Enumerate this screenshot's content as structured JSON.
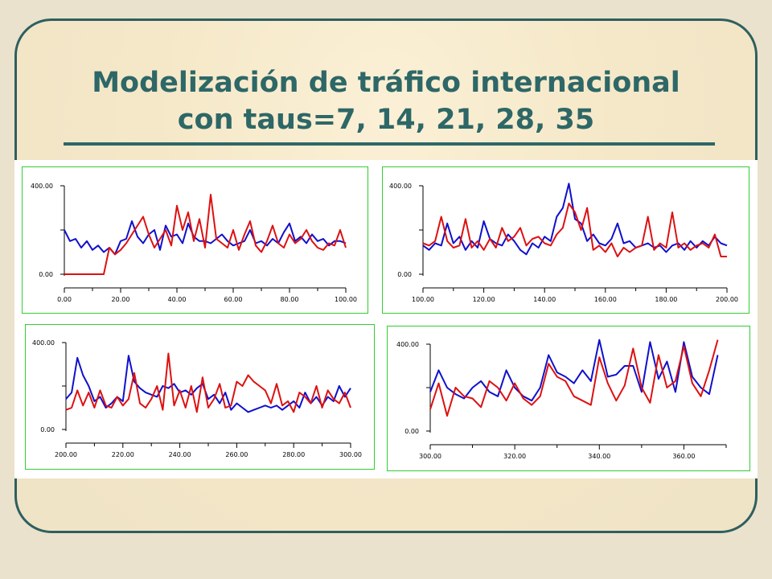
{
  "title": {
    "line1": "Modelización de tráfico internacional",
    "line2": "con taus=7, 14, 21, 28, 35"
  },
  "colors": {
    "background": "#eae2cc",
    "accent": "#2e6767",
    "series_blue": "#1010cc",
    "series_red": "#dd1111",
    "panel_border": "#33cc33"
  },
  "chart_data": [
    {
      "type": "line",
      "xlim": [
        0,
        100
      ],
      "ylim": [
        0,
        400
      ],
      "xtick_labels": [
        "0.00",
        "20.00",
        "40.00",
        "60.00",
        "80.00",
        "100.00"
      ],
      "ytick_labels": [
        "400.00",
        "0.00"
      ],
      "series": [
        {
          "color": "#1010cc",
          "x": [
            0,
            2,
            4,
            6,
            8,
            10,
            12,
            14,
            16,
            18,
            20,
            22,
            24,
            26,
            28,
            30,
            32,
            34,
            36,
            38,
            40,
            42,
            44,
            46,
            48,
            50,
            52,
            54,
            56,
            58,
            60,
            62,
            64,
            66,
            68,
            70,
            72,
            74,
            76,
            78,
            80,
            82,
            84,
            86,
            88,
            90,
            92,
            94,
            96,
            98,
            100
          ],
          "values": [
            200,
            150,
            160,
            120,
            150,
            110,
            130,
            100,
            120,
            90,
            150,
            160,
            240,
            170,
            140,
            180,
            200,
            110,
            220,
            170,
            180,
            140,
            230,
            170,
            150,
            150,
            140,
            160,
            180,
            150,
            130,
            140,
            150,
            200,
            140,
            150,
            130,
            160,
            140,
            190,
            230,
            150,
            170,
            140,
            180,
            150,
            160,
            130,
            150,
            150,
            140
          ]
        },
        {
          "color": "#dd1111",
          "x": [
            0,
            2,
            4,
            6,
            8,
            10,
            12,
            14,
            16,
            18,
            20,
            22,
            24,
            26,
            28,
            30,
            32,
            34,
            36,
            38,
            40,
            42,
            44,
            46,
            48,
            50,
            52,
            54,
            56,
            58,
            60,
            62,
            64,
            66,
            68,
            70,
            72,
            74,
            76,
            78,
            80,
            82,
            84,
            86,
            88,
            90,
            92,
            94,
            96,
            98,
            100
          ],
          "values": [
            0,
            0,
            0,
            0,
            0,
            0,
            0,
            0,
            120,
            90,
            110,
            140,
            180,
            220,
            260,
            180,
            120,
            160,
            200,
            130,
            310,
            200,
            280,
            150,
            250,
            120,
            360,
            160,
            140,
            120,
            200,
            110,
            180,
            240,
            130,
            100,
            150,
            220,
            140,
            120,
            180,
            140,
            160,
            200,
            150,
            120,
            110,
            140,
            130,
            200,
            120
          ]
        }
      ]
    },
    {
      "type": "line",
      "xlim": [
        100,
        200
      ],
      "ylim": [
        0,
        400
      ],
      "xtick_labels": [
        "100.00",
        "120.00",
        "140.00",
        "160.00",
        "180.00",
        "200.00"
      ],
      "ytick_labels": [
        "400.00",
        "0.00"
      ],
      "series": [
        {
          "color": "#1010cc",
          "x": [
            100,
            102,
            104,
            106,
            108,
            110,
            112,
            114,
            116,
            118,
            120,
            122,
            124,
            126,
            128,
            130,
            132,
            134,
            136,
            138,
            140,
            142,
            144,
            146,
            148,
            150,
            152,
            154,
            156,
            158,
            160,
            162,
            164,
            166,
            168,
            170,
            172,
            174,
            176,
            178,
            180,
            182,
            184,
            186,
            188,
            190,
            192,
            194,
            196,
            198,
            200
          ],
          "values": [
            130,
            110,
            140,
            130,
            230,
            140,
            170,
            110,
            150,
            120,
            240,
            160,
            140,
            130,
            180,
            150,
            110,
            90,
            140,
            120,
            170,
            150,
            260,
            300,
            410,
            250,
            230,
            150,
            180,
            140,
            130,
            160,
            230,
            140,
            150,
            120,
            130,
            140,
            120,
            130,
            100,
            130,
            140,
            110,
            150,
            120,
            150,
            130,
            170,
            140,
            130
          ]
        },
        {
          "color": "#dd1111",
          "x": [
            100,
            102,
            104,
            106,
            108,
            110,
            112,
            114,
            116,
            118,
            120,
            122,
            124,
            126,
            128,
            130,
            132,
            134,
            136,
            138,
            140,
            142,
            144,
            146,
            148,
            150,
            152,
            154,
            156,
            158,
            160,
            162,
            164,
            166,
            168,
            170,
            172,
            174,
            176,
            178,
            180,
            182,
            184,
            186,
            188,
            190,
            192,
            194,
            196,
            198,
            200
          ],
          "values": [
            140,
            130,
            150,
            260,
            150,
            120,
            130,
            250,
            120,
            150,
            110,
            160,
            120,
            210,
            150,
            170,
            210,
            130,
            160,
            170,
            140,
            130,
            180,
            210,
            320,
            280,
            200,
            300,
            110,
            130,
            100,
            140,
            80,
            120,
            100,
            120,
            130,
            260,
            110,
            140,
            120,
            280,
            120,
            140,
            110,
            130,
            140,
            120,
            180,
            80,
            80
          ]
        }
      ]
    },
    {
      "type": "line",
      "xlim": [
        200,
        300
      ],
      "ylim": [
        0,
        400
      ],
      "xtick_labels": [
        "200.00",
        "220.00",
        "240.00",
        "260.00",
        "280.00",
        "300.00"
      ],
      "ytick_labels": [
        "400.00",
        "0.00"
      ],
      "series": [
        {
          "color": "#1010cc",
          "x": [
            200,
            202,
            204,
            206,
            208,
            210,
            212,
            214,
            216,
            218,
            220,
            222,
            224,
            226,
            228,
            230,
            232,
            234,
            236,
            238,
            240,
            242,
            244,
            246,
            248,
            250,
            252,
            254,
            256,
            258,
            260,
            262,
            264,
            266,
            268,
            270,
            272,
            274,
            276,
            278,
            280,
            282,
            284,
            286,
            288,
            290,
            292,
            294,
            296,
            298,
            300
          ],
          "values": [
            140,
            170,
            330,
            250,
            200,
            130,
            150,
            100,
            120,
            150,
            130,
            340,
            220,
            190,
            170,
            160,
            150,
            200,
            190,
            210,
            170,
            180,
            160,
            190,
            210,
            140,
            160,
            120,
            170,
            90,
            120,
            100,
            80,
            90,
            100,
            110,
            100,
            110,
            90,
            110,
            130,
            100,
            170,
            120,
            150,
            110,
            150,
            130,
            200,
            150,
            190
          ]
        },
        {
          "color": "#dd1111",
          "x": [
            200,
            202,
            204,
            206,
            208,
            210,
            212,
            214,
            216,
            218,
            220,
            222,
            224,
            226,
            228,
            230,
            232,
            234,
            236,
            238,
            240,
            242,
            244,
            246,
            248,
            250,
            252,
            254,
            256,
            258,
            260,
            262,
            264,
            266,
            268,
            270,
            272,
            274,
            276,
            278,
            280,
            282,
            284,
            286,
            288,
            290,
            292,
            294,
            296,
            298,
            300
          ],
          "values": [
            90,
            100,
            180,
            110,
            170,
            100,
            180,
            110,
            100,
            150,
            110,
            140,
            260,
            120,
            100,
            140,
            200,
            90,
            350,
            110,
            180,
            100,
            200,
            80,
            240,
            100,
            140,
            210,
            100,
            110,
            220,
            200,
            250,
            220,
            200,
            180,
            120,
            210,
            110,
            130,
            80,
            170,
            150,
            120,
            200,
            100,
            180,
            140,
            120,
            170,
            100
          ]
        }
      ]
    },
    {
      "type": "line",
      "xlim": [
        300,
        370
      ],
      "ylim": [
        0,
        400
      ],
      "xtick_labels": [
        "300.00",
        "320.00",
        "340.00",
        "360.00"
      ],
      "ytick_labels": [
        "400.00",
        "0.00"
      ],
      "series": [
        {
          "color": "#1010cc",
          "x": [
            300,
            302,
            304,
            306,
            308,
            310,
            312,
            314,
            316,
            318,
            320,
            322,
            324,
            326,
            328,
            330,
            332,
            334,
            336,
            338,
            340,
            342,
            344,
            346,
            348,
            350,
            352,
            354,
            356,
            358,
            360,
            362,
            364,
            366,
            368
          ],
          "values": [
            180,
            280,
            200,
            170,
            150,
            200,
            230,
            180,
            160,
            280,
            200,
            160,
            140,
            200,
            350,
            270,
            250,
            220,
            280,
            230,
            420,
            250,
            260,
            300,
            300,
            180,
            410,
            240,
            320,
            180,
            410,
            250,
            200,
            170,
            350
          ]
        },
        {
          "color": "#dd1111",
          "x": [
            300,
            302,
            304,
            306,
            308,
            310,
            312,
            314,
            316,
            318,
            320,
            322,
            324,
            326,
            328,
            330,
            332,
            334,
            336,
            338,
            340,
            342,
            344,
            346,
            348,
            350,
            352,
            354,
            356,
            358,
            360,
            362,
            364,
            366,
            368
          ],
          "values": [
            100,
            220,
            70,
            200,
            160,
            150,
            110,
            230,
            200,
            140,
            220,
            150,
            120,
            160,
            310,
            250,
            230,
            160,
            140,
            120,
            340,
            220,
            140,
            210,
            380,
            200,
            130,
            350,
            200,
            230,
            390,
            220,
            160,
            280,
            420
          ]
        }
      ]
    }
  ]
}
